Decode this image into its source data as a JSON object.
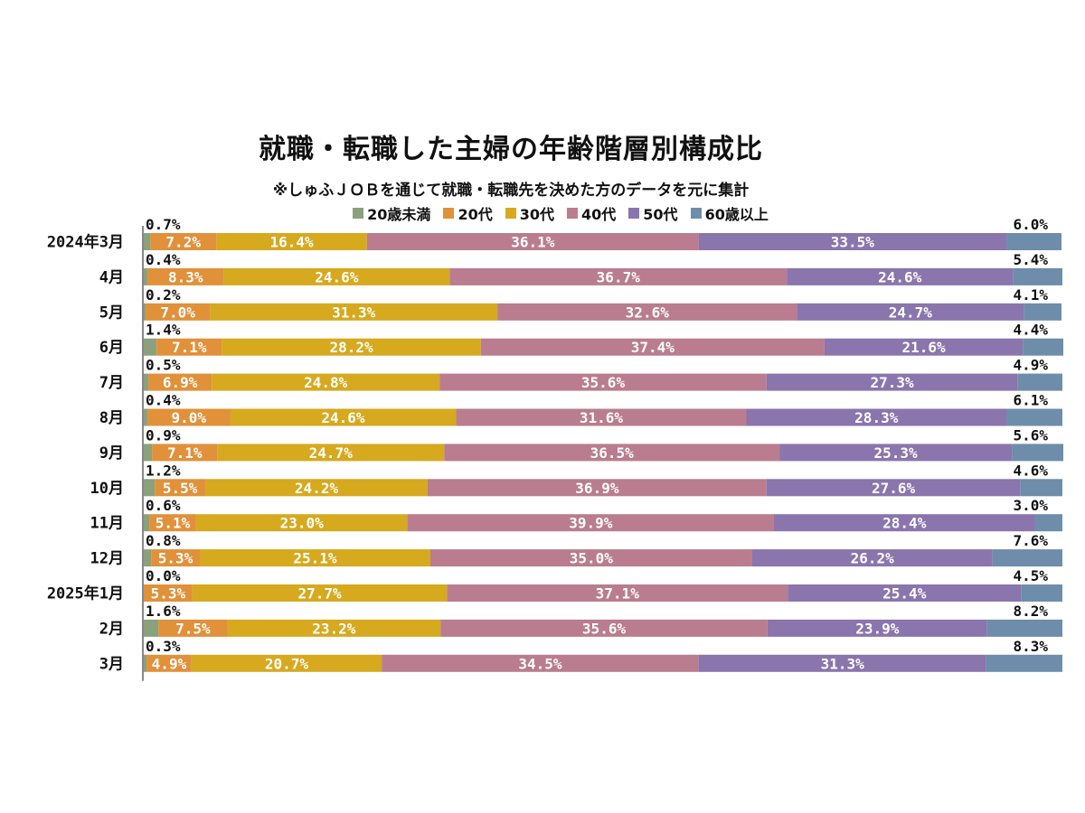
{
  "chart_data": {
    "type": "bar",
    "orientation": "horizontal",
    "stacked": true,
    "title": "就職・転職した主婦の年齢階層別構成比",
    "subtitle": "※しゅふＪＯＢを通じて就職・転職先を決めた方のデータを元に集計",
    "legend_position": "top",
    "xlim": [
      0,
      100
    ],
    "categories": [
      "2024年3月",
      "4月",
      "5月",
      "6月",
      "7月",
      "8月",
      "9月",
      "10月",
      "11月",
      "12月",
      "2025年1月",
      "2月",
      "3月"
    ],
    "series": [
      {
        "name": "20歳未満",
        "color": "#8aa17c",
        "values": [
          0.7,
          0.4,
          0.2,
          1.4,
          0.5,
          0.4,
          0.9,
          1.2,
          0.6,
          0.8,
          0.0,
          1.6,
          0.3
        ]
      },
      {
        "name": "20代",
        "color": "#e0913a",
        "values": [
          7.2,
          8.3,
          7.0,
          7.1,
          6.9,
          9.0,
          7.1,
          5.5,
          5.1,
          5.3,
          5.3,
          7.5,
          4.9
        ]
      },
      {
        "name": "30代",
        "color": "#d6a91f",
        "values": [
          16.4,
          24.6,
          31.3,
          28.2,
          24.8,
          24.6,
          24.7,
          24.2,
          23.0,
          25.1,
          27.7,
          23.2,
          20.7
        ]
      },
      {
        "name": "40代",
        "color": "#b97d8f",
        "values": [
          36.1,
          36.7,
          32.6,
          37.4,
          35.6,
          31.6,
          36.5,
          36.9,
          39.9,
          35.0,
          37.1,
          35.6,
          34.5
        ]
      },
      {
        "name": "50代",
        "color": "#8a75ad",
        "values": [
          33.5,
          24.6,
          24.7,
          21.6,
          27.3,
          28.3,
          25.3,
          27.6,
          28.4,
          26.2,
          25.4,
          23.9,
          31.3
        ]
      },
      {
        "name": "60歳以上",
        "color": "#6e8dab",
        "values": [
          6.0,
          5.4,
          4.1,
          4.4,
          4.9,
          6.1,
          5.6,
          4.6,
          3.0,
          7.6,
          4.5,
          8.2,
          8.3
        ]
      }
    ]
  }
}
